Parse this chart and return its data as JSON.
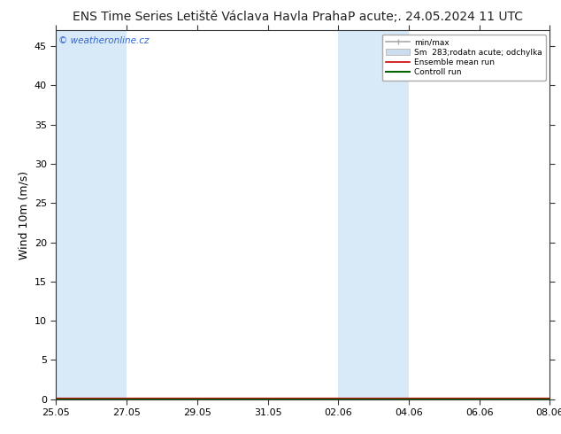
{
  "title_left": "ENS Time Series Letiště Václava Havla Praha",
  "title_right": "P acute;. 24.05.2024 11 UTC",
  "ylabel": "Wind 10m (m/s)",
  "watermark": "© weatheronline.cz",
  "ylim": [
    0,
    47
  ],
  "yticks": [
    0,
    5,
    10,
    15,
    20,
    25,
    30,
    35,
    40,
    45
  ],
  "x_dates": [
    "25.05",
    "27.05",
    "29.05",
    "31.05",
    "02.06",
    "04.06",
    "06.06",
    "08.06"
  ],
  "background_color": "#ffffff",
  "band_color": "#d8eaf8",
  "white_color": "#ffffff",
  "title_fontsize": 10,
  "tick_fontsize": 8,
  "ylabel_fontsize": 9,
  "watermark_color": "#3366cc",
  "legend_minmax_color": "#aaaaaa",
  "legend_fill_color": "#ccddee",
  "legend_ens_color": "#cc0000",
  "legend_ctrl_color": "#006600"
}
